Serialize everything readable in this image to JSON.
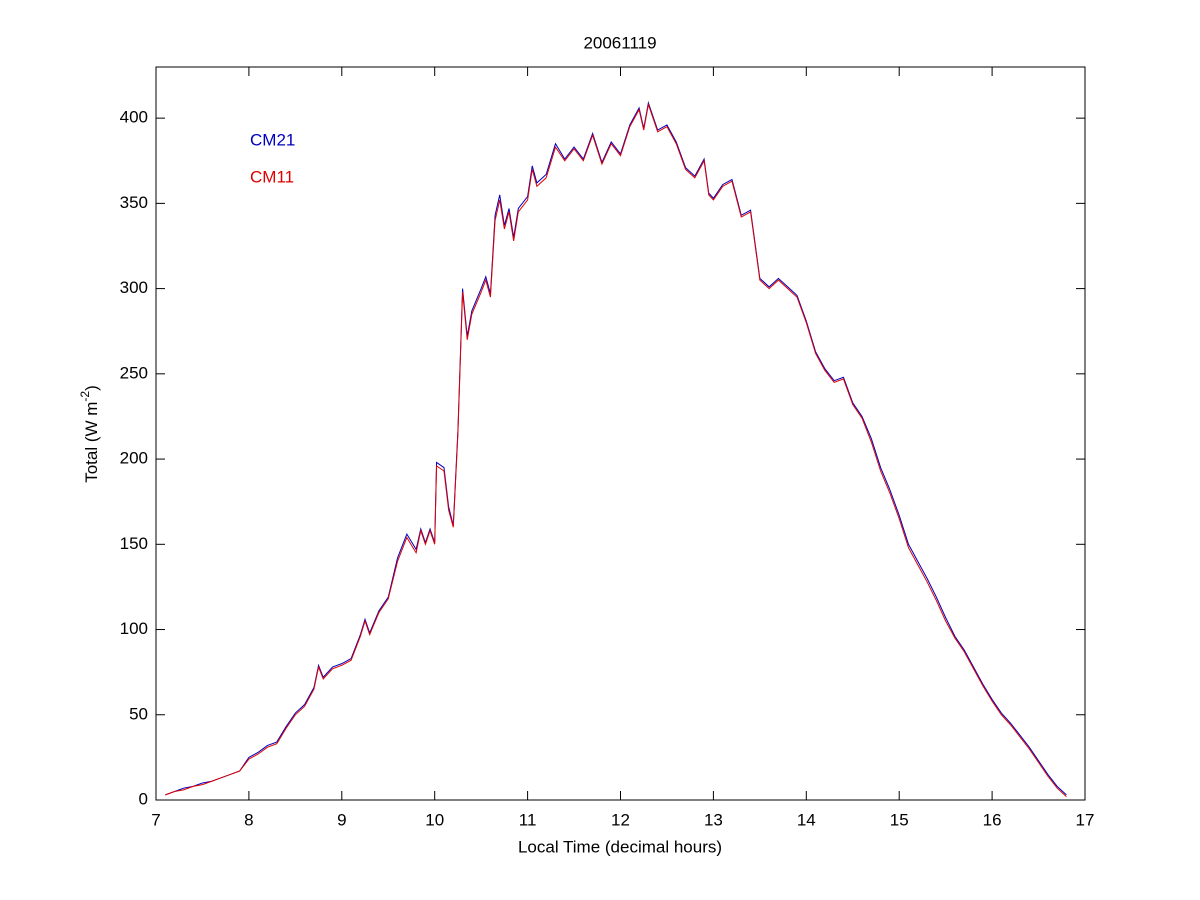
{
  "chart_data": {
    "type": "line",
    "title": "20061119",
    "xlabel": "Local Time (decimal hours)",
    "ylabel": [
      "Total (W m",
      "-2",
      ")"
    ],
    "xlim": [
      7,
      17
    ],
    "xticks": [
      7,
      8,
      9,
      10,
      11,
      12,
      13,
      14,
      15,
      16,
      17
    ],
    "ylim": [
      0,
      430
    ],
    "yticks": [
      0,
      50,
      100,
      150,
      200,
      250,
      300,
      350,
      400
    ],
    "grid": false,
    "legend": "upper left",
    "x": [
      7.1,
      7.2,
      7.3,
      7.4,
      7.5,
      7.6,
      7.7,
      7.8,
      7.9,
      8.0,
      8.1,
      8.2,
      8.3,
      8.4,
      8.5,
      8.6,
      8.7,
      8.75,
      8.8,
      8.9,
      9.0,
      9.1,
      9.2,
      9.25,
      9.3,
      9.4,
      9.5,
      9.6,
      9.7,
      9.8,
      9.85,
      9.9,
      9.95,
      10.0,
      10.02,
      10.1,
      10.15,
      10.2,
      10.25,
      10.3,
      10.35,
      10.4,
      10.5,
      10.55,
      10.6,
      10.65,
      10.7,
      10.75,
      10.8,
      10.85,
      10.9,
      11.0,
      11.05,
      11.1,
      11.2,
      11.3,
      11.4,
      11.5,
      11.6,
      11.7,
      11.8,
      11.9,
      12.0,
      12.1,
      12.2,
      12.25,
      12.3,
      12.4,
      12.5,
      12.6,
      12.7,
      12.8,
      12.9,
      12.95,
      13.0,
      13.1,
      13.2,
      13.3,
      13.4,
      13.5,
      13.6,
      13.7,
      13.8,
      13.9,
      14.0,
      14.1,
      14.2,
      14.3,
      14.4,
      14.5,
      14.6,
      14.7,
      14.8,
      14.9,
      15.0,
      15.1,
      15.2,
      15.3,
      15.4,
      15.5,
      15.6,
      15.7,
      15.8,
      15.9,
      16.0,
      16.1,
      16.2,
      16.3,
      16.4,
      16.5,
      16.6,
      16.7,
      16.8
    ],
    "series": [
      {
        "name": "CM21",
        "color": "#0000c0",
        "values": [
          3,
          5,
          7,
          8,
          10,
          11,
          13,
          15,
          17,
          25,
          28,
          32,
          34,
          43,
          51,
          56,
          66,
          79,
          72,
          78,
          80,
          83,
          97,
          106,
          98,
          111,
          119,
          142,
          156,
          147,
          159,
          151,
          159,
          151,
          198,
          195,
          172,
          161,
          217,
          300,
          272,
          287,
          300,
          307,
          297,
          343,
          355,
          337,
          347,
          330,
          347,
          354,
          372,
          362,
          367,
          385,
          376,
          383,
          376,
          391,
          374,
          386,
          379,
          396,
          406,
          394,
          409,
          393,
          396,
          386,
          371,
          366,
          376,
          356,
          353,
          361,
          364,
          343,
          346,
          306,
          301,
          306,
          301,
          296,
          281,
          263,
          253,
          246,
          248,
          233,
          225,
          212,
          195,
          182,
          167,
          150,
          140,
          130,
          119,
          107,
          96,
          88,
          78,
          68,
          59,
          51,
          45,
          38,
          31,
          23,
          15,
          8,
          3
        ]
      },
      {
        "name": "CM11",
        "color": "#e00000",
        "values": [
          3,
          5,
          6,
          8,
          9,
          11,
          13,
          15,
          17,
          24,
          27,
          31,
          33,
          42,
          50,
          55,
          65,
          78,
          71,
          77,
          79,
          82,
          96,
          105,
          97,
          110,
          118,
          140,
          154,
          145,
          158,
          150,
          158,
          150,
          196,
          193,
          170,
          160,
          215,
          298,
          270,
          285,
          298,
          305,
          295,
          340,
          352,
          335,
          345,
          328,
          345,
          352,
          370,
          360,
          365,
          383,
          375,
          382,
          375,
          390,
          373,
          385,
          378,
          395,
          405,
          393,
          408,
          392,
          395,
          385,
          370,
          365,
          375,
          355,
          352,
          360,
          363,
          342,
          345,
          305,
          300,
          305,
          300,
          295,
          280,
          262,
          252,
          245,
          247,
          232,
          224,
          210,
          193,
          180,
          165,
          148,
          138,
          128,
          117,
          105,
          95,
          87,
          77,
          67,
          58,
          50,
          44,
          37,
          30,
          22,
          14,
          7,
          2
        ]
      }
    ]
  }
}
